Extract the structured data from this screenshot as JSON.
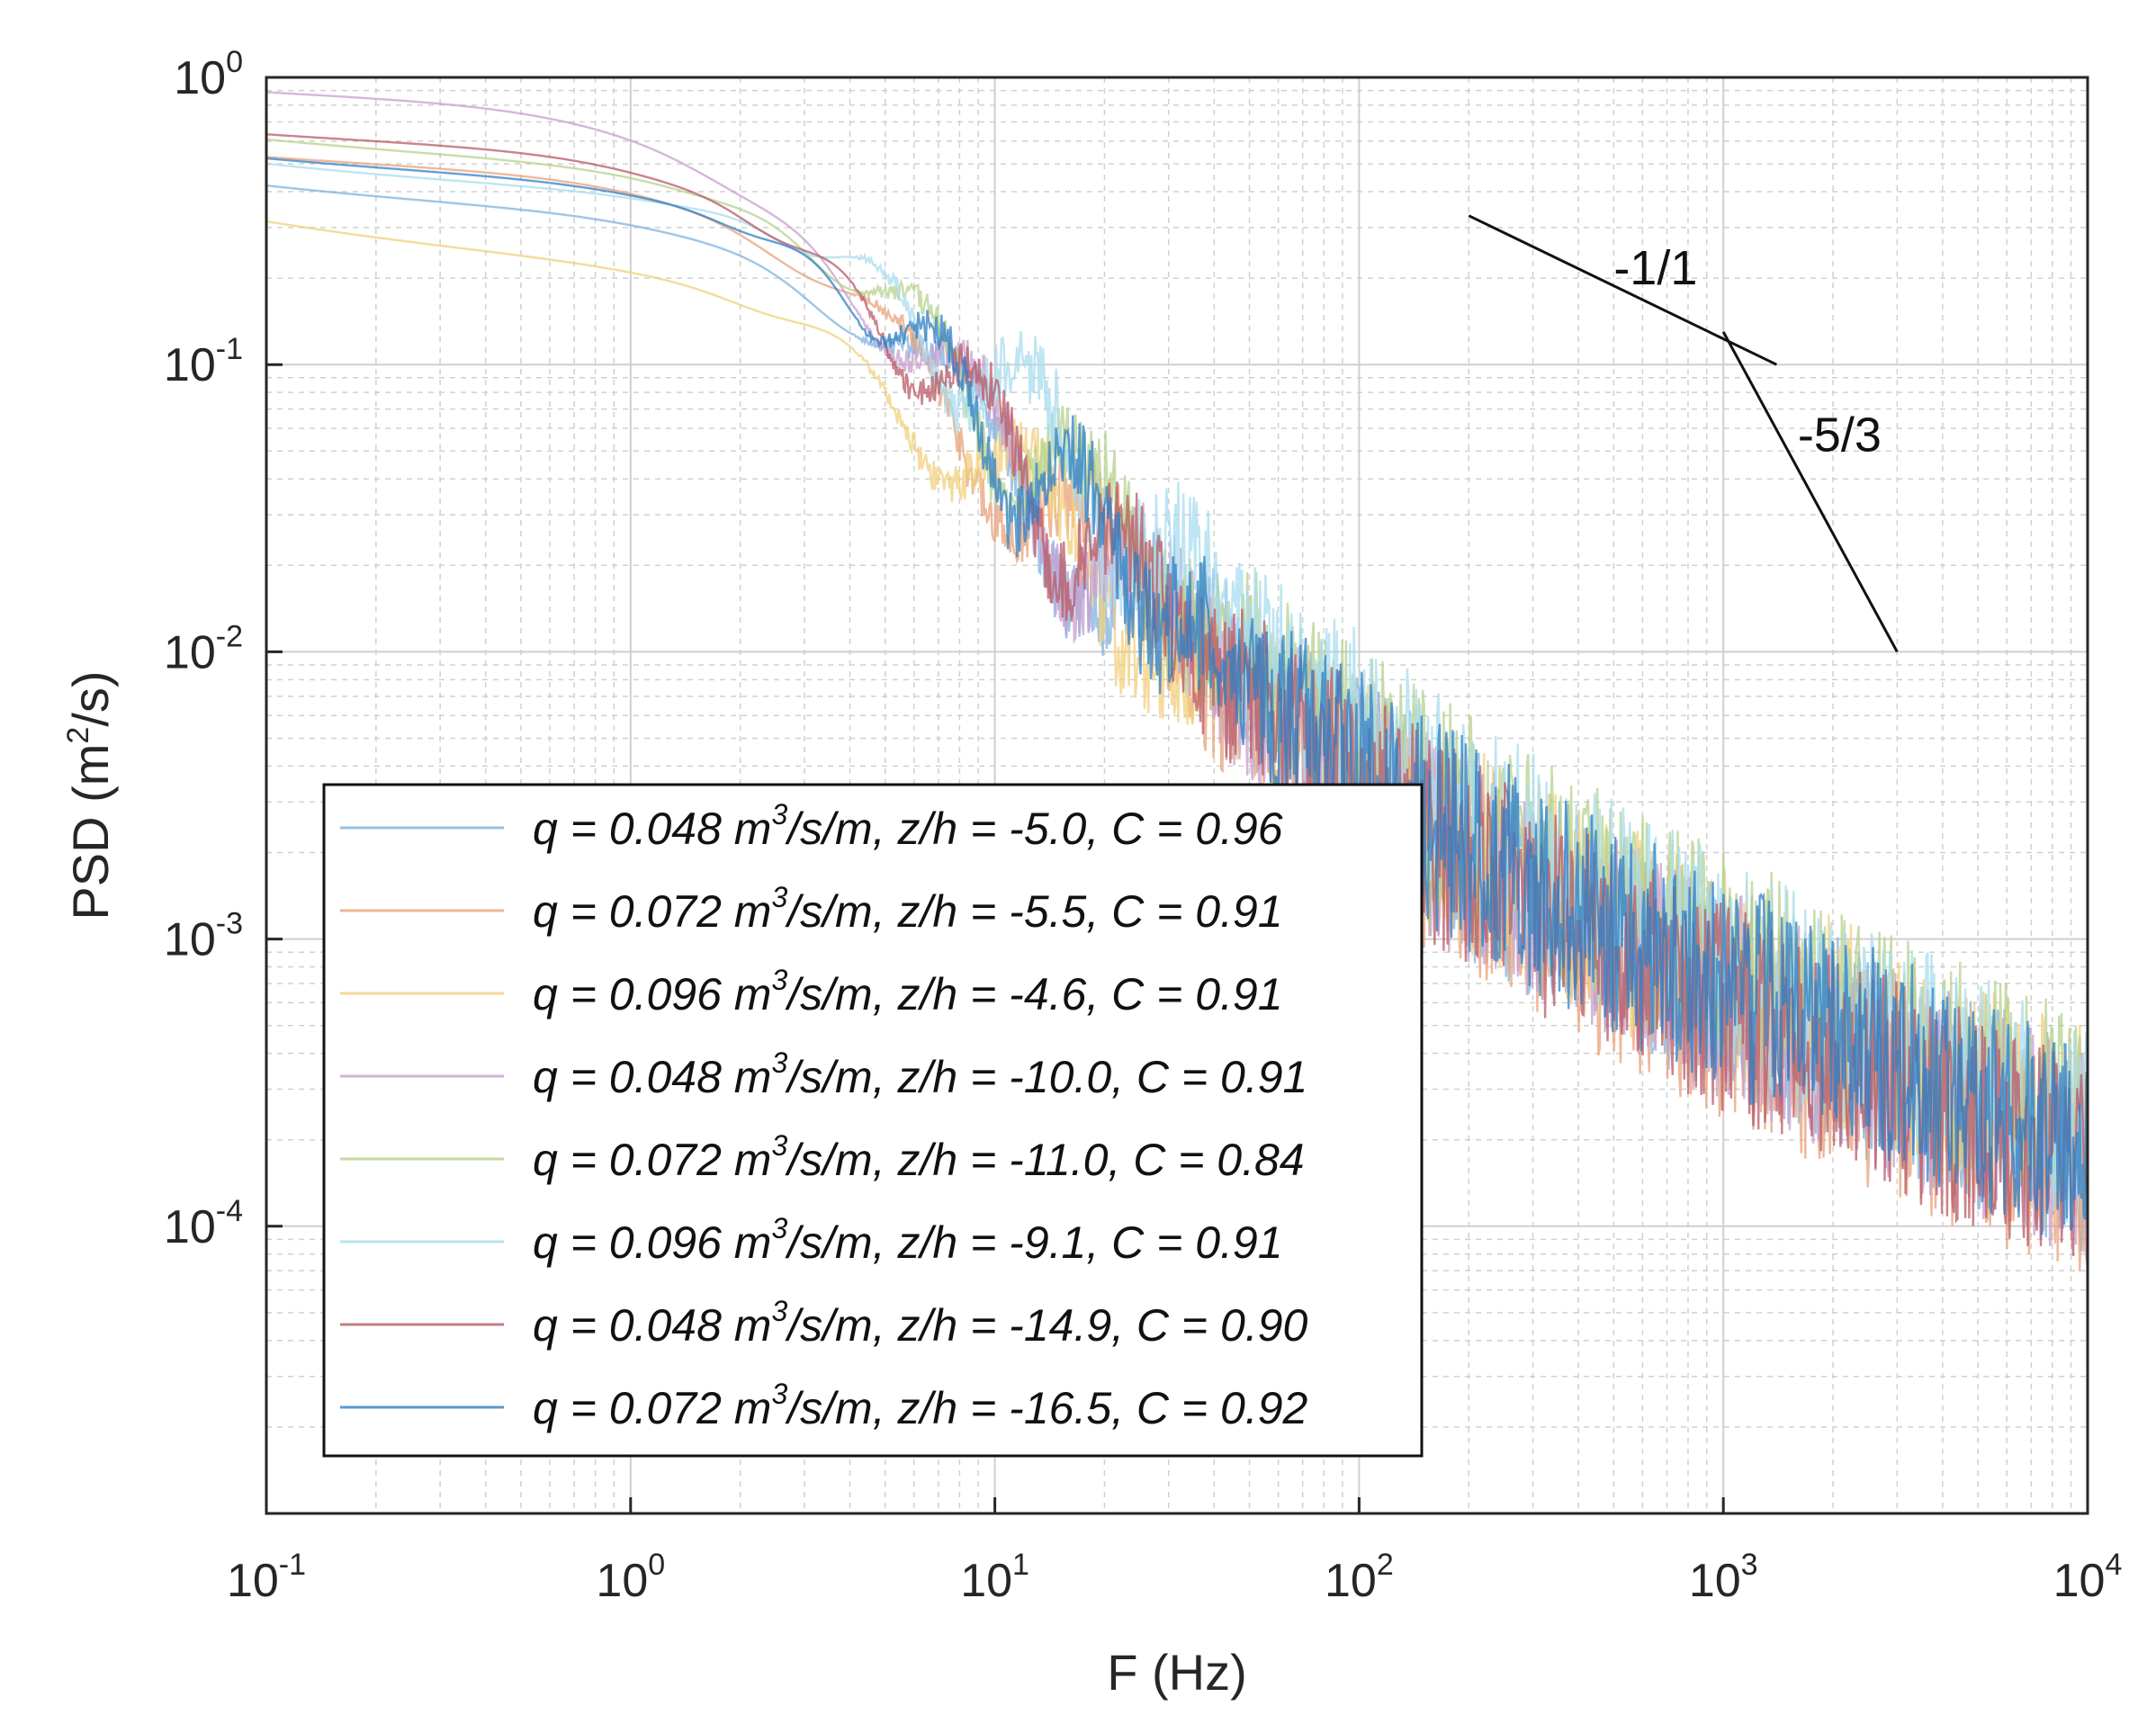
{
  "chart_data": {
    "type": "line",
    "xscale": "log",
    "yscale": "log",
    "xlim": [
      0.1,
      10000
    ],
    "ylim": [
      1e-05,
      1
    ],
    "grid": true,
    "xlabel": "F (Hz)",
    "ylabel": {
      "pre": "PSD (m",
      "sup": "2",
      "post": "/s)"
    },
    "xticks": [
      {
        "base": "10",
        "exp": "-1",
        "value": 0.1
      },
      {
        "base": "10",
        "exp": "0",
        "value": 1
      },
      {
        "base": "10",
        "exp": "1",
        "value": 10
      },
      {
        "base": "10",
        "exp": "2",
        "value": 100
      },
      {
        "base": "10",
        "exp": "3",
        "value": 1000
      },
      {
        "base": "10",
        "exp": "4",
        "value": 10000
      }
    ],
    "yticks": [
      {
        "base": "10",
        "exp": "0",
        "value": 1
      },
      {
        "base": "10",
        "exp": "-1",
        "value": 0.1
      },
      {
        "base": "10",
        "exp": "-2",
        "value": 0.01
      },
      {
        "base": "10",
        "exp": "-3",
        "value": 0.001
      },
      {
        "base": "10",
        "exp": "-4",
        "value": 0.0001
      }
    ],
    "legend_position": "lower-left",
    "series": [
      {
        "name": "q = 0.048 m3/s/m, z/h = -5.0, C = 0.96",
        "q": "0.048",
        "zh": "-5.0",
        "c": "0.96",
        "color": "#7fb2de",
        "low_level": 0.32,
        "fc": 3.2,
        "hf_amp": 0.00035
      },
      {
        "name": "q = 0.072 m3/s/m, z/h = -5.5, C = 0.91",
        "q": "0.072",
        "zh": "-5.5",
        "c": "0.91",
        "color": "#e8a27a",
        "low_level": 0.45,
        "fc": 2.6,
        "hf_amp": 0.00028
      },
      {
        "name": "q = 0.096 m3/s/m, z/h = -4.6, C = 0.91",
        "q": "0.096",
        "zh": "-4.6",
        "c": "0.91",
        "color": "#f2cf7c",
        "low_level": 0.2,
        "fc": 3.5,
        "hf_amp": 0.0004
      },
      {
        "name": "q = 0.048 m3/s/m, z/h = -10.0, C = 0.91",
        "q": "0.048",
        "zh": "-10.0",
        "c": "0.91",
        "color": "#c79fce",
        "low_level": 0.8,
        "fc": 1.8,
        "hf_amp": 0.00033
      },
      {
        "name": "q = 0.072 m3/s/m, z/h = -11.0, C = 0.84",
        "q": "0.072",
        "zh": "-11.0",
        "c": "0.84",
        "color": "#b6d18e",
        "low_level": 0.48,
        "fc": 3.0,
        "hf_amp": 0.00045
      },
      {
        "name": "q = 0.096 m3/s/m, z/h = -9.1, C = 0.91",
        "q": "0.096",
        "zh": "-9.1",
        "c": "0.91",
        "color": "#a8dcef",
        "low_level": 0.38,
        "fc": 4.2,
        "hf_amp": 0.00042
      },
      {
        "name": "q = 0.048 m3/s/m, z/h = -14.9, C = 0.90",
        "q": "0.048",
        "zh": "-14.9",
        "c": "0.90",
        "color": "#b85a66",
        "low_level": 0.55,
        "fc": 2.4,
        "hf_amp": 0.0003
      },
      {
        "name": "q = 0.072 m3/s/m, z/h = -16.5, C = 0.92",
        "q": "0.072",
        "zh": "-16.5",
        "c": "0.92",
        "color": "#2f7fc4",
        "low_level": 0.42,
        "fc": 3.0,
        "hf_amp": 0.00036
      }
    ],
    "slope_lines": [
      {
        "label": "-1/1",
        "x": [
          200,
          1400
        ],
        "y": [
          0.33,
          0.1
        ],
        "label_at": [
          500,
          0.19
        ]
      },
      {
        "label": "-5/3",
        "x": [
          1000,
          3000
        ],
        "y": [
          0.13,
          0.01
        ],
        "label_at": [
          1600,
          0.05
        ]
      }
    ]
  },
  "legend": {
    "entries": [
      {
        "pre": "q = 0.048 m",
        "sup": "3",
        "post": "/s/m, z/h = -5.0, C = 0.96"
      },
      {
        "pre": "q = 0.072 m",
        "sup": "3",
        "post": "/s/m, z/h = -5.5, C = 0.91"
      },
      {
        "pre": "q = 0.096 m",
        "sup": "3",
        "post": "/s/m, z/h = -4.6, C = 0.91"
      },
      {
        "pre": "q = 0.048 m",
        "sup": "3",
        "post": "/s/m, z/h = -10.0, C = 0.91"
      },
      {
        "pre": "q = 0.072 m",
        "sup": "3",
        "post": "/s/m, z/h = -11.0, C = 0.84"
      },
      {
        "pre": "q = 0.096 m",
        "sup": "3",
        "post": "/s/m, z/h = -9.1, C = 0.91"
      },
      {
        "pre": "q = 0.048 m",
        "sup": "3",
        "post": "/s/m, z/h = -14.9, C = 0.90"
      },
      {
        "pre": "q = 0.072 m",
        "sup": "3",
        "post": "/s/m, z/h = -16.5, C = 0.92"
      }
    ]
  }
}
